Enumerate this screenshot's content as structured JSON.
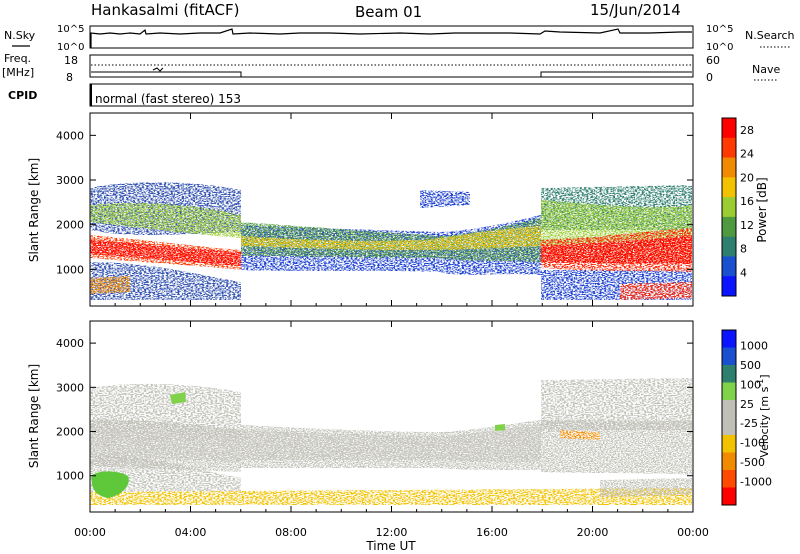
{
  "header": {
    "station": "Hankasalmi (fitACF)",
    "beam": "Beam 01",
    "date": "15/Jun/2014"
  },
  "noise_panel": {
    "left_label": "N.Sky",
    "right_label": "N.Search",
    "left_ticks": [
      "10^5",
      "10^0"
    ],
    "right_ticks": [
      "10^5",
      "10^0"
    ]
  },
  "freq_panel": {
    "left_label_line1": "Freq.",
    "left_label_line2": "[MHz]",
    "right_label": "Nave",
    "left_ticks": [
      "18",
      "8"
    ],
    "right_ticks": [
      "60",
      "0"
    ]
  },
  "cpid": {
    "label": "CPID",
    "program": "normal (fast stereo) 153"
  },
  "colors": {
    "power_scale": [
      "#0a14ff",
      "#1a4fd0",
      "#2f7f6f",
      "#4f9a3f",
      "#9acd32",
      "#f2c200",
      "#f08a00",
      "#ff3a00",
      "#ff0000"
    ],
    "velocity_scale": [
      "#ff0000",
      "#ff4a00",
      "#f08a00",
      "#f2c200",
      "#c0c0b8",
      "#c0c0b8",
      "#7fd24a",
      "#2f7f6f",
      "#1a4fd0",
      "#0a14ff"
    ],
    "ground_scatter": "#c0c0b8"
  },
  "chart_data": [
    {
      "type": "heatmap",
      "title": "Power",
      "ylabel": "Slant Range [km]",
      "xlabel": "",
      "x_ticks": [
        "00:00",
        "04:00",
        "08:00",
        "12:00",
        "16:00",
        "20:00",
        "00:00"
      ],
      "y_ticks": [
        1000,
        2000,
        3000,
        4000
      ],
      "xlim_hours": [
        0,
        24
      ],
      "ylim_km": [
        180,
        4500
      ],
      "colorbar": {
        "label": "Power [dB]",
        "ticks": [
          4,
          8,
          12,
          16,
          20,
          24,
          28
        ],
        "range": [
          0,
          30
        ]
      },
      "features": [
        {
          "name": "main-echo-band",
          "hours": [
            0,
            24
          ],
          "center_km": [
            1350,
            1400,
            1450,
            1350,
            1200,
            1800,
            1850,
            1750,
            1650,
            1550,
            1600,
            1700,
            1900,
            1600,
            1350,
            1300,
            1400,
            1700
          ],
          "peak_db": 28
        },
        {
          "name": "upper-band",
          "hours": [
            0,
            6
          ],
          "center_km": [
            2200,
            2100,
            2000,
            2050
          ],
          "peak_db": 14
        },
        {
          "name": "evening-band",
          "hours": [
            18,
            24
          ],
          "center_km": [
            2200,
            2300,
            2350
          ],
          "peak_db": 18
        },
        {
          "name": "far-patch",
          "hours": [
            21.5,
            24
          ],
          "center_km": [
            550,
            600
          ],
          "peak_db": 26
        }
      ]
    },
    {
      "type": "heatmap",
      "title": "Velocity",
      "ylabel": "Slant Range [km]",
      "xlabel": "Time UT",
      "x_ticks": [
        "00:00",
        "04:00",
        "08:00",
        "12:00",
        "16:00",
        "20:00",
        "00:00"
      ],
      "y_ticks": [
        1000,
        2000,
        3000,
        4000
      ],
      "xlim_hours": [
        0,
        24
      ],
      "ylim_km": [
        180,
        4500
      ],
      "colorbar": {
        "label": "Velocity [m s^-1]",
        "ticks": [
          1000,
          500,
          100,
          25,
          -25,
          -100,
          -500,
          -1000
        ]
      },
      "features": [
        {
          "name": "ground-scatter-band",
          "hours": [
            0,
            24
          ],
          "center_km": [
            1450,
            1500,
            1550,
            1650,
            1700,
            1750,
            1700,
            1600,
            1550
          ],
          "value": "ground scatter (grey)"
        },
        {
          "name": "positive-velocity-patch",
          "hours": [
            0,
            1.5
          ],
          "center_km": [
            850
          ],
          "value_ms": 150
        },
        {
          "name": "negative-velocity-near-range",
          "hours": [
            0,
            24
          ],
          "center_km": [
            300
          ],
          "value_ms": -60
        }
      ]
    }
  ]
}
